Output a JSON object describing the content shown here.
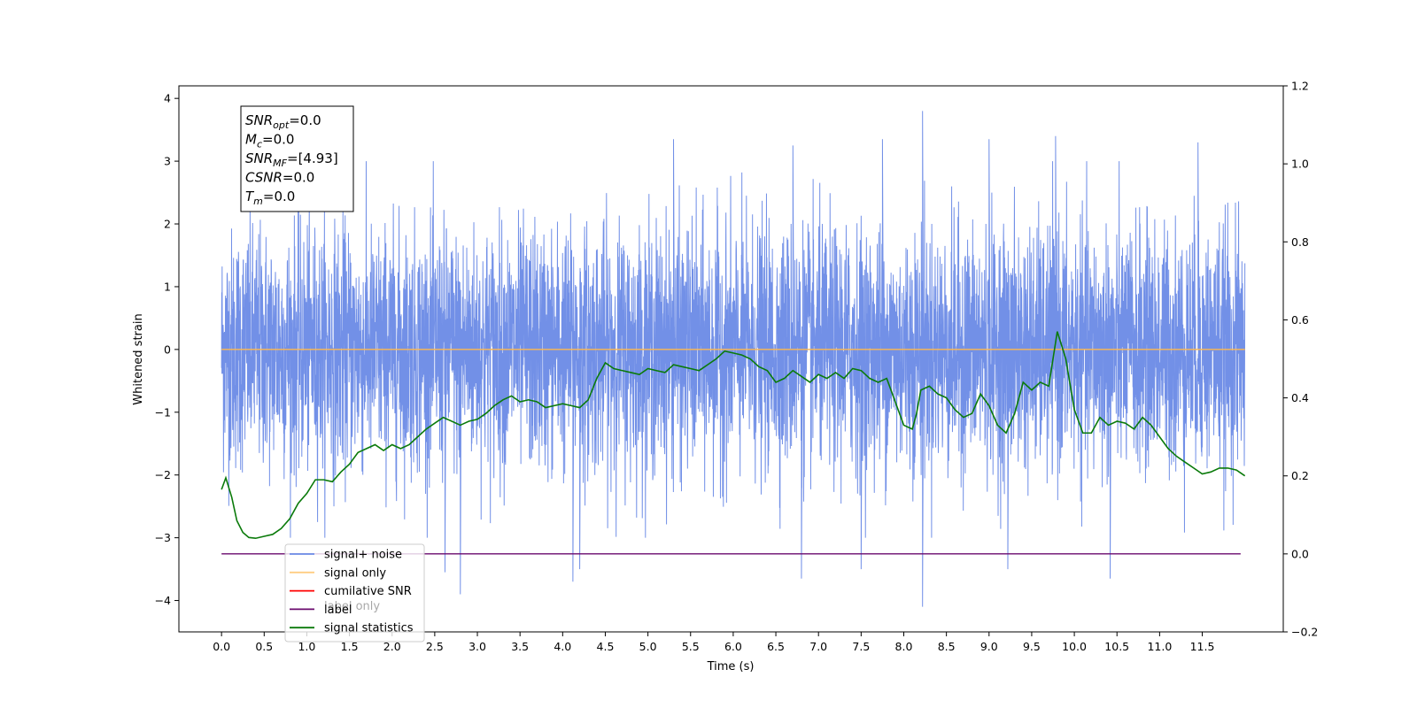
{
  "chart_data": {
    "type": "line",
    "xlabel": "Time (s)",
    "ylabel": "Whitened strain",
    "xlim": [
      -0.5,
      12.45
    ],
    "ylim": [
      -4.5,
      4.2
    ],
    "y2lim": [
      -0.2,
      1.2
    ],
    "x_ticks": [
      0.0,
      0.5,
      1.0,
      1.5,
      2.0,
      2.5,
      3.0,
      3.5,
      4.0,
      4.5,
      5.0,
      5.5,
      6.0,
      6.5,
      7.0,
      7.5,
      8.0,
      8.5,
      9.0,
      9.5,
      10.0,
      10.5,
      11.0,
      11.5
    ],
    "x_tick_labels": [
      "0.0",
      "0.5",
      "1.0",
      "1.5",
      "2.0",
      "2.5",
      "3.0",
      "3.5",
      "4.0",
      "4.5",
      "5.0",
      "5.5",
      "6.0",
      "6.5",
      "7.0",
      "7.5",
      "8.0",
      "8.5",
      "9.0",
      "9.5",
      "10.0",
      "10.5",
      "11.0",
      "11.5"
    ],
    "y_ticks": [
      4,
      3,
      2,
      1,
      0,
      -1,
      -2,
      -3,
      -4
    ],
    "y_tick_labels": [
      "4",
      "3",
      "2",
      "1",
      "0",
      "−1",
      "−2",
      "−3",
      "−4"
    ],
    "y2_ticks": [
      1.2,
      1.0,
      0.8,
      0.6,
      0.4,
      0.2,
      0.0,
      -0.2
    ],
    "y2_tick_labels": [
      "1.2",
      "1.0",
      "0.8",
      "0.6",
      "0.4",
      "0.2",
      "0.0",
      "−0.2"
    ],
    "legend_placement": "lower-left",
    "grid": false,
    "series": [
      {
        "name": "signal+ noise",
        "axis": "left",
        "color": "#6a8ae6",
        "kind": "noise",
        "x_range": [
          0.0,
          12.0
        ],
        "envelope_max": 3.8,
        "envelope_min": -4.1,
        "extreme_points": [
          {
            "x": 8.22,
            "y": 3.8
          },
          {
            "x": 8.22,
            "y": -4.1
          },
          {
            "x": 2.8,
            "y": -3.9
          },
          {
            "x": 4.12,
            "y": -3.7
          },
          {
            "x": 6.8,
            "y": -3.65
          },
          {
            "x": 10.42,
            "y": -3.65
          },
          {
            "x": 2.62,
            "y": -3.55
          },
          {
            "x": 9.22,
            "y": -3.5
          },
          {
            "x": 7.5,
            "y": -3.5
          },
          {
            "x": 4.2,
            "y": -3.5
          },
          {
            "x": 5.3,
            "y": 3.35
          },
          {
            "x": 7.75,
            "y": 3.35
          },
          {
            "x": 9.78,
            "y": 3.4
          },
          {
            "x": 6.7,
            "y": 3.25
          },
          {
            "x": 11.45,
            "y": 3.3
          },
          {
            "x": 9.0,
            "y": 3.35
          }
        ]
      },
      {
        "name": "signal only",
        "axis": "left",
        "color": "#ffb84d",
        "x": [
          0.0,
          12.0
        ],
        "y": [
          0.0,
          0.0
        ]
      },
      {
        "name": "cumilative SNR",
        "axis": "left",
        "color": "#ff0000",
        "x": [],
        "y": []
      },
      {
        "name": "label",
        "axis": "right",
        "color": "#6a0a6e",
        "x": [
          0.0,
          11.95
        ],
        "y": [
          0.0,
          0.0
        ]
      },
      {
        "name": "signal statistics",
        "axis": "right",
        "color": "#0a7a0a",
        "x": [
          0.0,
          0.05,
          0.12,
          0.18,
          0.25,
          0.32,
          0.4,
          0.5,
          0.6,
          0.7,
          0.8,
          0.9,
          1.0,
          1.1,
          1.2,
          1.3,
          1.4,
          1.5,
          1.6,
          1.7,
          1.8,
          1.9,
          2.0,
          2.1,
          2.2,
          2.3,
          2.4,
          2.5,
          2.6,
          2.7,
          2.8,
          2.9,
          3.0,
          3.1,
          3.2,
          3.3,
          3.4,
          3.5,
          3.6,
          3.7,
          3.8,
          3.9,
          4.0,
          4.1,
          4.2,
          4.3,
          4.4,
          4.5,
          4.6,
          4.7,
          4.8,
          4.9,
          5.0,
          5.1,
          5.2,
          5.3,
          5.4,
          5.5,
          5.6,
          5.7,
          5.8,
          5.9,
          6.0,
          6.1,
          6.2,
          6.3,
          6.4,
          6.5,
          6.6,
          6.7,
          6.8,
          6.9,
          7.0,
          7.1,
          7.2,
          7.3,
          7.4,
          7.5,
          7.6,
          7.7,
          7.8,
          7.9,
          8.0,
          8.1,
          8.15,
          8.2,
          8.3,
          8.4,
          8.5,
          8.6,
          8.7,
          8.8,
          8.9,
          9.0,
          9.1,
          9.2,
          9.3,
          9.4,
          9.5,
          9.6,
          9.7,
          9.8,
          9.9,
          10.0,
          10.1,
          10.2,
          10.3,
          10.4,
          10.5,
          10.6,
          10.7,
          10.8,
          10.9,
          11.0,
          11.1,
          11.2,
          11.3,
          11.4,
          11.5,
          11.6,
          11.7,
          11.8,
          11.9,
          12.0
        ],
        "y": [
          0.165,
          0.195,
          0.145,
          0.085,
          0.055,
          0.042,
          0.04,
          0.045,
          0.05,
          0.065,
          0.09,
          0.13,
          0.155,
          0.19,
          0.19,
          0.185,
          0.21,
          0.23,
          0.26,
          0.27,
          0.28,
          0.265,
          0.28,
          0.27,
          0.28,
          0.3,
          0.32,
          0.335,
          0.35,
          0.34,
          0.33,
          0.34,
          0.345,
          0.36,
          0.38,
          0.395,
          0.405,
          0.39,
          0.395,
          0.39,
          0.375,
          0.38,
          0.385,
          0.38,
          0.375,
          0.395,
          0.45,
          0.49,
          0.475,
          0.47,
          0.465,
          0.46,
          0.475,
          0.47,
          0.465,
          0.485,
          0.48,
          0.475,
          0.47,
          0.485,
          0.5,
          0.52,
          0.515,
          0.51,
          0.5,
          0.48,
          0.47,
          0.44,
          0.45,
          0.47,
          0.455,
          0.44,
          0.46,
          0.45,
          0.465,
          0.45,
          0.475,
          0.47,
          0.45,
          0.44,
          0.45,
          0.39,
          0.33,
          0.32,
          0.36,
          0.42,
          0.43,
          0.41,
          0.4,
          0.37,
          0.35,
          0.36,
          0.41,
          0.38,
          0.33,
          0.31,
          0.36,
          0.44,
          0.42,
          0.44,
          0.43,
          0.57,
          0.5,
          0.37,
          0.31,
          0.31,
          0.35,
          0.33,
          0.34,
          0.335,
          0.32,
          0.35,
          0.33,
          0.3,
          0.27,
          0.25,
          0.235,
          0.22,
          0.205,
          0.21,
          0.22,
          0.22,
          0.215,
          0.2
        ]
      }
    ],
    "annotation_lines": [
      {
        "label": "SNR",
        "sub": "opt",
        "rest": "=0.0"
      },
      {
        "label": "M",
        "sub": "c",
        "rest": "=0.0"
      },
      {
        "label": "SNR",
        "sub": "MF",
        "rest": "=[4.93]"
      },
      {
        "label": "CSNR",
        "sub": "",
        "rest": "=0.0"
      },
      {
        "label": "T",
        "sub": "m",
        "rest": "=0.0"
      }
    ],
    "hidden_legend_text": "label only"
  }
}
